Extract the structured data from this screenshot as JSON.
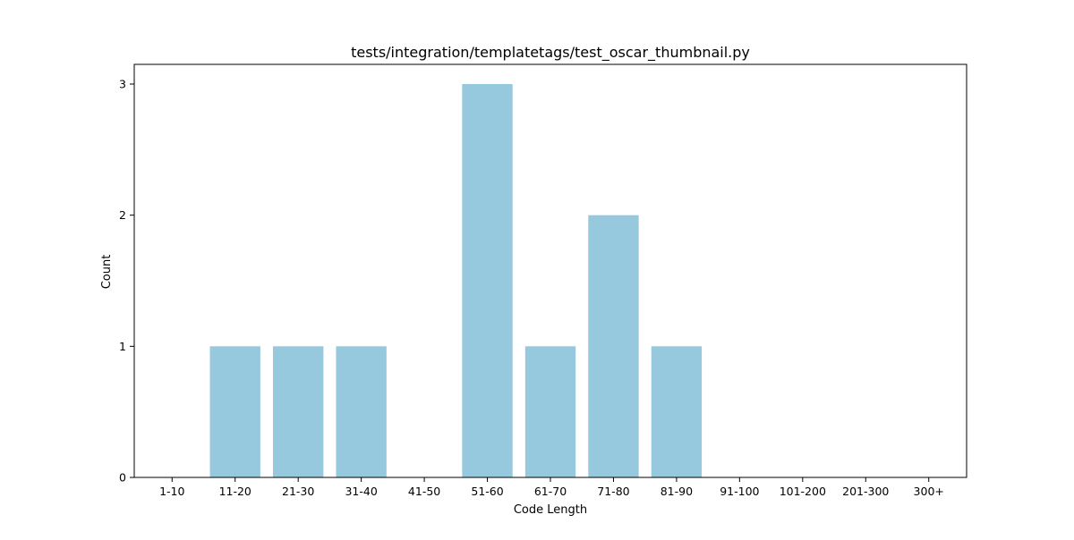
{
  "chart_data": {
    "type": "bar",
    "title": "tests/integration/templatetags/test_oscar_thumbnail.py",
    "xlabel": "Code Length",
    "ylabel": "Count",
    "categories": [
      "1-10",
      "11-20",
      "21-30",
      "31-40",
      "41-50",
      "51-60",
      "61-70",
      "71-80",
      "81-90",
      "91-100",
      "101-200",
      "201-300",
      "300+"
    ],
    "values": [
      0,
      1,
      1,
      1,
      0,
      3,
      1,
      2,
      1,
      0,
      0,
      0,
      0
    ],
    "ylim": [
      0,
      3.15
    ],
    "yticks": [
      0,
      1,
      2,
      3
    ],
    "grid": false,
    "bar_color": "#96c9de"
  }
}
